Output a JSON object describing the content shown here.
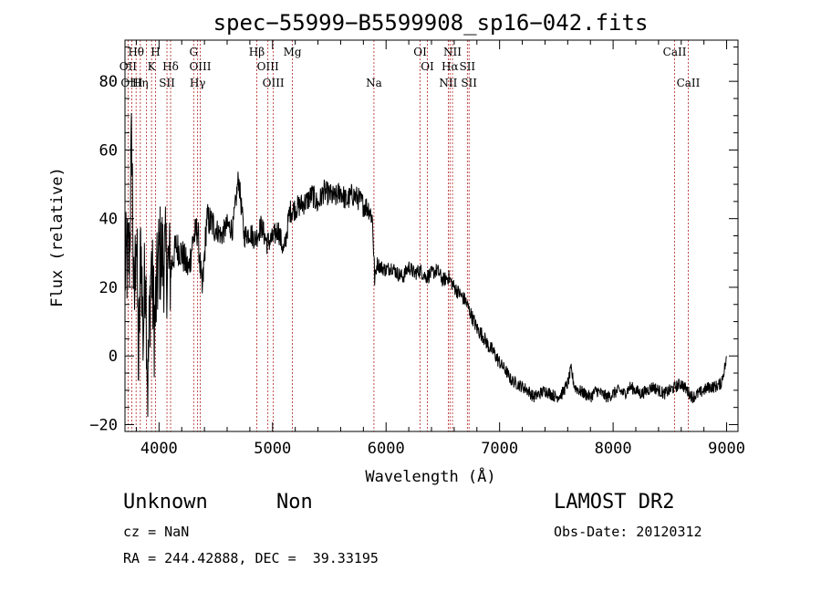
{
  "chart_data": {
    "type": "line",
    "title": "spec−55999−B5599908_sp16−042.fits",
    "xlabel": "Wavelength (Å)",
    "ylabel": "Flux (relative)",
    "xlim": [
      3700,
      9100
    ],
    "ylim": [
      -22,
      92
    ],
    "xticks": [
      4000,
      5000,
      6000,
      7000,
      8000,
      9000
    ],
    "xtick_labels": [
      "4000",
      "5000",
      "6000",
      "7000",
      "8000",
      "9000"
    ],
    "yticks": [
      -20,
      0,
      20,
      40,
      60,
      80
    ],
    "ytick_labels": [
      "−20",
      "0",
      "20",
      "40",
      "60",
      "80"
    ],
    "grid": false,
    "series": [
      {
        "x": [
          3700,
          3740,
          3760,
          3780,
          3800,
          3820,
          3840,
          3860,
          3880,
          3900,
          3930,
          3960,
          4000,
          4050,
          4100,
          4150,
          4200,
          4260,
          4300,
          4340,
          4380,
          4420,
          4480,
          4550,
          4600,
          4650,
          4700,
          4750,
          4800,
          4850,
          4900,
          4950,
          5000,
          5050,
          5100,
          5150,
          5200,
          5250,
          5300,
          5350,
          5400,
          5450,
          5500,
          5550,
          5600,
          5650,
          5700,
          5750,
          5800,
          5850,
          5880,
          5900,
          5920,
          5950,
          6000,
          6050,
          6100,
          6150,
          6200,
          6250,
          6300,
          6350,
          6400,
          6450,
          6500,
          6550,
          6600,
          6650,
          6700,
          6750,
          6800,
          6850,
          6900,
          6950,
          7000,
          7050,
          7100,
          7150,
          7200,
          7250,
          7300,
          7350,
          7400,
          7450,
          7500,
          7550,
          7600,
          7630,
          7660,
          7700,
          7750,
          7800,
          7850,
          7900,
          7950,
          8000,
          8050,
          8100,
          8150,
          8200,
          8250,
          8300,
          8350,
          8400,
          8450,
          8500,
          8550,
          8600,
          8650,
          8700,
          8750,
          8800,
          8850,
          8900,
          8950,
          9000
        ],
        "y": [
          25,
          30,
          65,
          10,
          40,
          -5,
          35,
          5,
          30,
          -10,
          28,
          8,
          30,
          28,
          25,
          32,
          30,
          25,
          34,
          37,
          18,
          40,
          38,
          35,
          38,
          37,
          52,
          35,
          36,
          34,
          38,
          33,
          34,
          37,
          30,
          42,
          43,
          44,
          45,
          47,
          44,
          48,
          47,
          46,
          48,
          45,
          47,
          46,
          44,
          43,
          40,
          22,
          27,
          26,
          25,
          26,
          24,
          23,
          26,
          24,
          25,
          23,
          24,
          25,
          22,
          23,
          20,
          18,
          16,
          12,
          8,
          6,
          3,
          1,
          -2,
          -4,
          -7,
          -8,
          -9,
          -10,
          -12,
          -11,
          -10,
          -11,
          -12,
          -11,
          -8,
          -4,
          -9,
          -10,
          -11,
          -12,
          -10,
          -11,
          -12,
          -11,
          -10,
          -11,
          -9,
          -10,
          -11,
          -10,
          -9,
          -10,
          -11,
          -10,
          -9,
          -8,
          -10,
          -12,
          -11,
          -10,
          -9,
          -9,
          -8,
          -1
        ]
      }
    ],
    "spectral_lines": [
      {
        "label": "Hθ",
        "x": 3798,
        "row": 0
      },
      {
        "label": "H",
        "x": 3969,
        "row": 0
      },
      {
        "label": "G",
        "x": 4305,
        "row": 0
      },
      {
        "label": "Hβ",
        "x": 4861,
        "row": 0
      },
      {
        "label": "Mg",
        "x": 5175,
        "row": 0
      },
      {
        "label": "OI",
        "x": 6300,
        "row": 0
      },
      {
        "label": "NII",
        "x": 6585,
        "row": 0
      },
      {
        "label": "CaII",
        "x": 8542,
        "row": 0
      },
      {
        "label": "OII",
        "x": 3727,
        "row": 1
      },
      {
        "label": "K",
        "x": 3934,
        "row": 1
      },
      {
        "label": "Hδ",
        "x": 4102,
        "row": 1
      },
      {
        "label": "OIII",
        "x": 4363,
        "row": 1
      },
      {
        "label": "OIII",
        "x": 4959,
        "row": 1
      },
      {
        "label": "OI",
        "x": 6364,
        "row": 1
      },
      {
        "label": "Hα",
        "x": 6563,
        "row": 1
      },
      {
        "label": "SII",
        "x": 6716,
        "row": 1
      },
      {
        "label": "OIII",
        "x": 3760,
        "row": 2
      },
      {
        "label": "Hη",
        "x": 3835,
        "row": 2
      },
      {
        "label": "SII",
        "x": 4070,
        "row": 2
      },
      {
        "label": "Hγ",
        "x": 4340,
        "row": 2
      },
      {
        "label": "OIII",
        "x": 5007,
        "row": 2
      },
      {
        "label": "Na",
        "x": 5893,
        "row": 2
      },
      {
        "label": "NII",
        "x": 6548,
        "row": 2
      },
      {
        "label": "SII",
        "x": 6731,
        "row": 2
      },
      {
        "label": "CaII",
        "x": 8662,
        "row": 2
      }
    ],
    "extra_lines_x": [
      3890,
      4340,
      4861,
      4959,
      5007,
      5175,
      5893,
      6300,
      6364,
      6548,
      6563,
      6585,
      6716,
      6731,
      8542,
      8662
    ]
  },
  "info": {
    "object_class": "Unknown",
    "subclass": "Non",
    "cz": "cz = NaN",
    "radec": "RA = 244.42888, DEC =  39.33195",
    "survey": "LAMOST DR2",
    "obs_date": "Obs-Date: 20120312"
  },
  "colors": {
    "line_marker": "#b22222",
    "spectrum": "#000000"
  }
}
